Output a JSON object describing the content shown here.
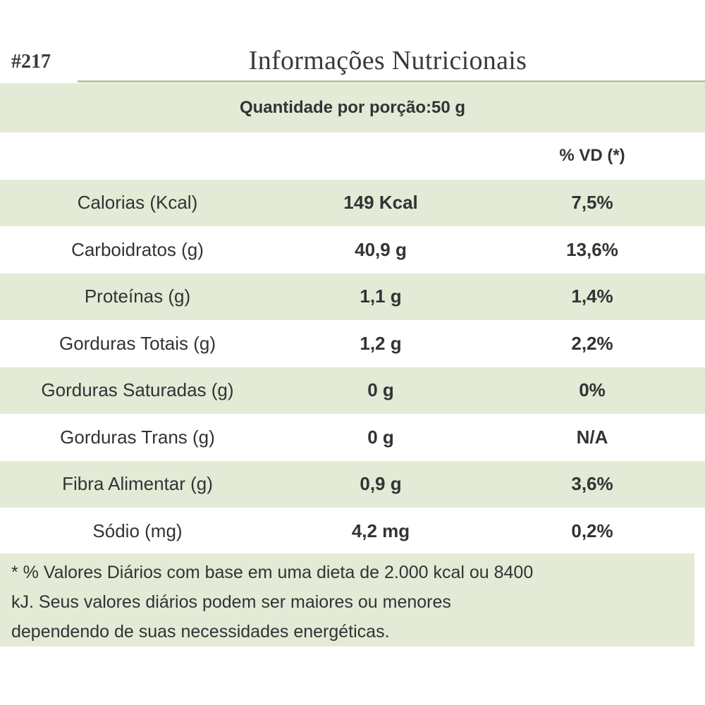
{
  "code": "#217",
  "title": "Informações Nutricionais",
  "serving": "Quantidade por porção:50 g",
  "vd_header": "% VD (*)",
  "rows": [
    {
      "name": "Calorias (Kcal)",
      "amount": "149 Kcal",
      "vd": "7,5%"
    },
    {
      "name": "Carboidratos (g)",
      "amount": "40,9 g",
      "vd": "13,6%"
    },
    {
      "name": "Proteínas (g)",
      "amount": "1,1 g",
      "vd": "1,4%"
    },
    {
      "name": "Gorduras Totais (g)",
      "amount": "1,2 g",
      "vd": "2,2%"
    },
    {
      "name": "Gorduras Saturadas (g)",
      "amount": "0 g",
      "vd": "0%"
    },
    {
      "name": "Gorduras Trans (g)",
      "amount": "0 g",
      "vd": "N/A"
    },
    {
      "name": "Fibra Alimentar (g)",
      "amount": "0,9 g",
      "vd": "3,6%"
    },
    {
      "name": "Sódio (mg)",
      "amount": "4,2 mg",
      "vd": "0,2%"
    }
  ],
  "footnote": {
    "line1": "* % Valores Diários com base em uma dieta de 2.000 kcal ou 8400",
    "line2": "kJ. Seus valores diários podem ser maiores ou menores",
    "line3": "dependendo de suas necessidades energéticas."
  },
  "colors": {
    "shade": "#e3ead6",
    "rule": "#b6c79c",
    "text": "#333333"
  }
}
